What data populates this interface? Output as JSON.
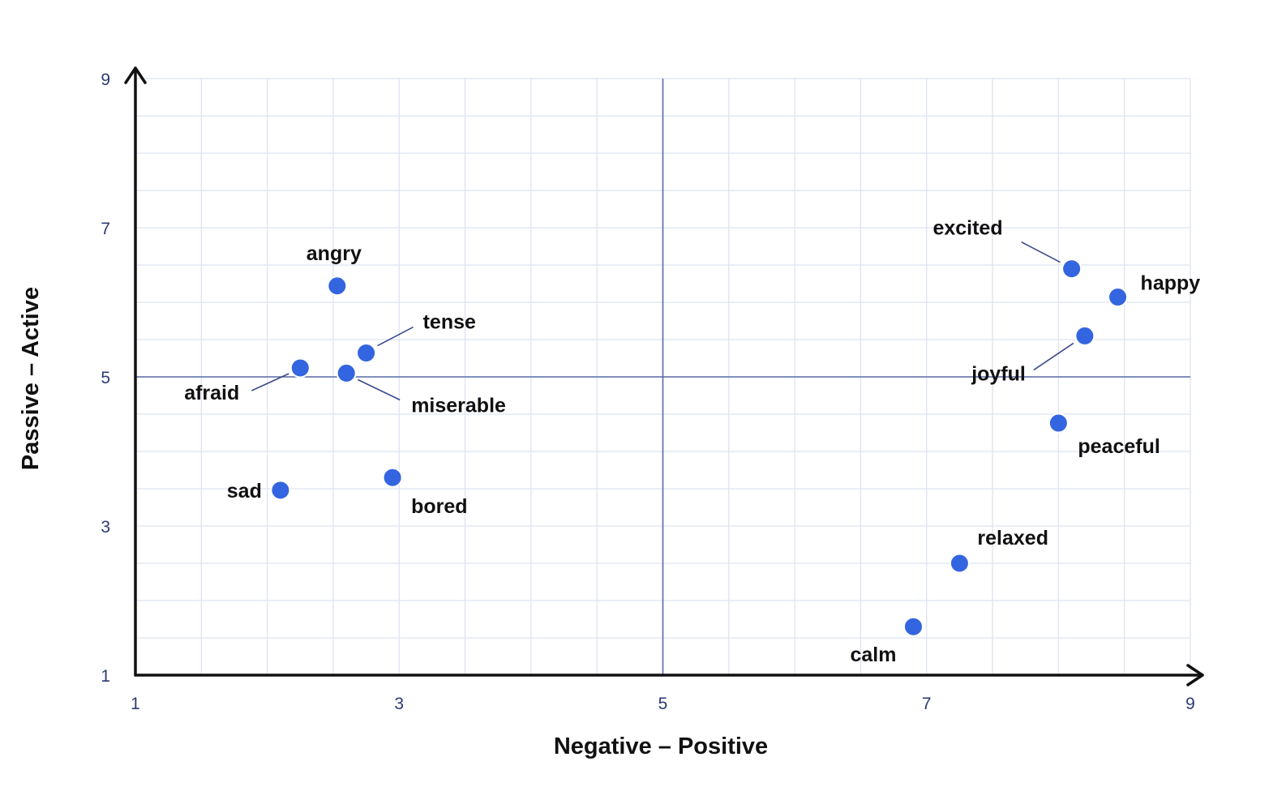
{
  "chart_data": {
    "type": "scatter",
    "title": "",
    "xlabel": "Negative – Positive",
    "ylabel": "Passive – Active",
    "xlim": [
      1,
      9
    ],
    "ylim": [
      1,
      9
    ],
    "xticks": [
      1,
      3,
      5,
      7,
      9
    ],
    "yticks": [
      1,
      3,
      5,
      7,
      9
    ],
    "grid": true,
    "legend": "none",
    "center_lines": {
      "x": 5,
      "y": 5
    },
    "colors": {
      "point": "#3465e0",
      "point_stroke": "#ffffff",
      "grid": "#dde3f1",
      "axis": "#111111",
      "center_line": "#5b6aa8",
      "leader": "#3d4a8a"
    },
    "points": [
      {
        "label": "angry",
        "x": 2.53,
        "y": 6.22
      },
      {
        "label": "tense",
        "x": 2.75,
        "y": 5.32
      },
      {
        "label": "afraid",
        "x": 2.25,
        "y": 5.12
      },
      {
        "label": "miserable",
        "x": 2.6,
        "y": 5.05
      },
      {
        "label": "sad",
        "x": 2.1,
        "y": 3.48
      },
      {
        "label": "bored",
        "x": 2.95,
        "y": 3.65
      },
      {
        "label": "excited",
        "x": 8.1,
        "y": 6.45
      },
      {
        "label": "happy",
        "x": 8.45,
        "y": 6.07
      },
      {
        "label": "joyful",
        "x": 8.2,
        "y": 5.55
      },
      {
        "label": "peaceful",
        "x": 8.0,
        "y": 4.38
      },
      {
        "label": "relaxed",
        "x": 7.25,
        "y": 2.5
      },
      {
        "label": "calm",
        "x": 6.9,
        "y": 1.65
      }
    ]
  }
}
